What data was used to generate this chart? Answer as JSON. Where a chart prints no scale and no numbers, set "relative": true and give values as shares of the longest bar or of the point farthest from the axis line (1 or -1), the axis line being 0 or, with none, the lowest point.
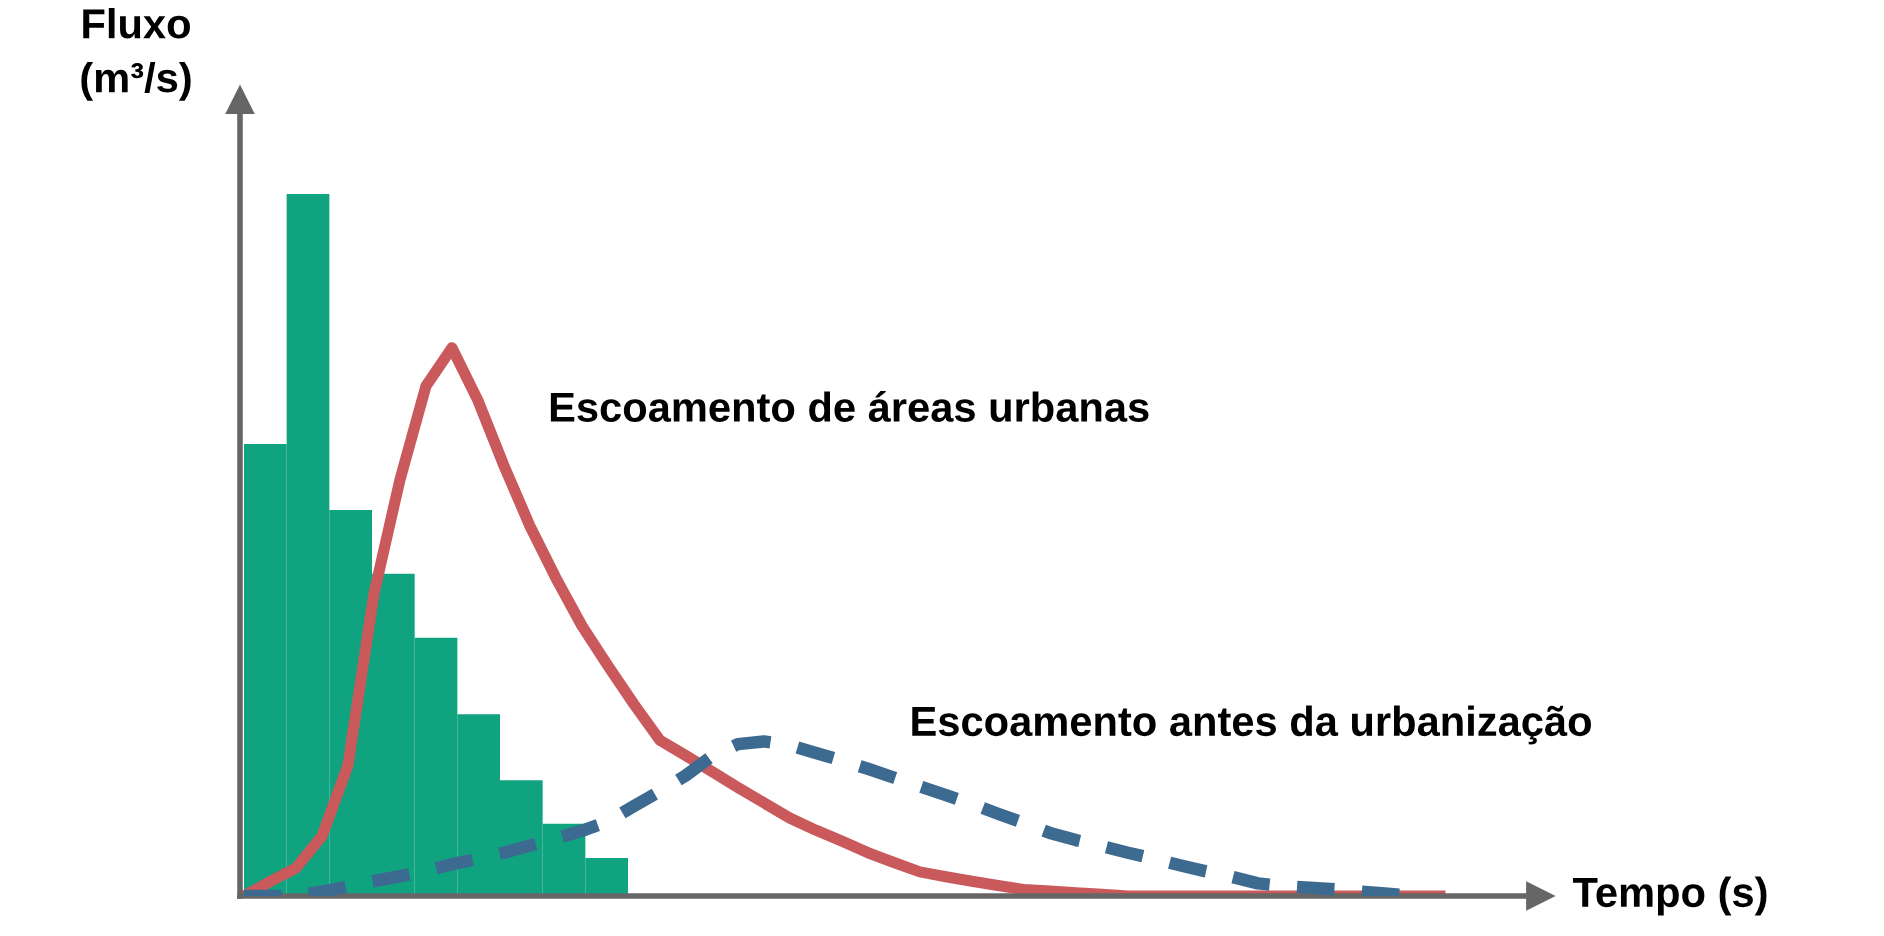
{
  "chart_data": [
    {
      "type": "bar",
      "relative": true,
      "categories": [
        null,
        null,
        null,
        null,
        null,
        null,
        null,
        null,
        null
      ],
      "series": [
        {
          "color": "#0fa37f",
          "values": [
            0.644,
            1,
            0.55,
            0.459,
            0.368,
            0.259,
            0.165,
            0.103,
            0.054
          ]
        }
      ]
    },
    {
      "type": "line",
      "relative": true,
      "xlabel": "Tempo (s)",
      "ylabel": "Fluxo\n(m³/s)",
      "categories": [
        null,
        null,
        null,
        null,
        null,
        null,
        null,
        null,
        null,
        null,
        null,
        null,
        null,
        null,
        null,
        null,
        null,
        null,
        null,
        null,
        null,
        null,
        null,
        null,
        null,
        null,
        null,
        null,
        null,
        null,
        null,
        null,
        null,
        null,
        null,
        null,
        null,
        null,
        null,
        null,
        null,
        null,
        null,
        null,
        null,
        null,
        null
      ],
      "series": [
        {
          "name": "Escoamento de áreas urbanas",
          "color": "#c9595a",
          "line_style": "solid",
          "values": [
            0,
            0.026,
            0.051,
            0.109,
            0.238,
            0.551,
            0.759,
            0.93,
            1,
            0.904,
            0.785,
            0.675,
            0.58,
            0.493,
            0.42,
            0.35,
            0.284,
            0.256,
            0.227,
            0.198,
            0.17,
            0.142,
            0.12,
            0.1,
            0.079,
            0.061,
            0.044,
            0.035,
            0.027,
            0.019,
            0.012,
            0.009,
            0.006,
            0.003,
            0,
            0,
            0,
            0,
            0,
            0,
            0,
            0,
            0,
            0,
            0,
            0,
            0
          ]
        },
        {
          "name": "Escoamento antes da urbanização",
          "color": "#3d6a91",
          "line_style": "dashed",
          "values": [
            0,
            0,
            0,
            0.008,
            0.017,
            0.027,
            0.036,
            0.046,
            0.058,
            0.068,
            0.079,
            0.092,
            0.105,
            0.119,
            0.136,
            0.164,
            0.191,
            0.22,
            0.255,
            0.277,
            0.282,
            0.275,
            0.261,
            0.247,
            0.232,
            0.216,
            0.2,
            0.184,
            0.168,
            0.15,
            0.133,
            0.115,
            0.102,
            0.091,
            0.079,
            0.068,
            0.056,
            0.045,
            0.035,
            0.023,
            0.018,
            0.015,
            0.012,
            0.008,
            0.004,
            0,
            null
          ]
        }
      ]
    }
  ]
}
